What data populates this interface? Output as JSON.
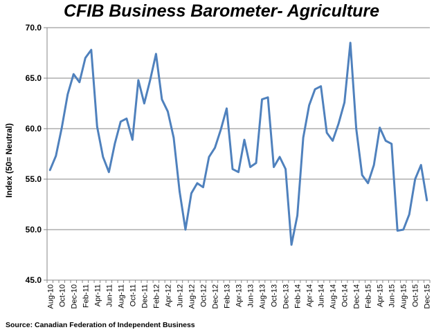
{
  "chart_data": {
    "type": "line",
    "title": "CFIB Business Barometer- Agriculture",
    "ylabel": "Index (50= Neutral)",
    "xlabel": "",
    "source": "Source: Canadian Federation of Independent Business",
    "ylim": [
      45.0,
      70.0
    ],
    "yticks": [
      "45.0",
      "50.0",
      "55.0",
      "60.0",
      "65.0",
      "70.0"
    ],
    "grid": "horizontal",
    "line_color": "#4f81bd",
    "x": [
      "Aug-10",
      "Sep-10",
      "Oct-10",
      "Nov-10",
      "Dec-10",
      "Jan-11",
      "Feb-11",
      "Mar-11",
      "Apr-11",
      "May-11",
      "Jun-11",
      "Jul-11",
      "Aug-11",
      "Sep-11",
      "Oct-11",
      "Nov-11",
      "Dec-11",
      "Jan-12",
      "Feb-12",
      "Mar-12",
      "Apr-12",
      "May-12",
      "Jun-12",
      "Jul-12",
      "Aug-12",
      "Sep-12",
      "Oct-12",
      "Nov-12",
      "Dec-12",
      "Jan-13",
      "Feb-13",
      "Mar-13",
      "Apr-13",
      "May-13",
      "Jun-13",
      "Jul-13",
      "Aug-13",
      "Sep-13",
      "Oct-13",
      "Nov-13",
      "Dec-13",
      "Jan-14",
      "Feb-14",
      "Mar-14",
      "Apr-14",
      "May-14",
      "Jun-14",
      "Jul-14",
      "Aug-14",
      "Sep-14",
      "Oct-14",
      "Nov-14",
      "Dec-14",
      "Jan-15",
      "Feb-15",
      "Mar-15",
      "Apr-15",
      "May-15",
      "Jun-15",
      "Jul-15",
      "Aug-15",
      "Sep-15",
      "Oct-15",
      "Nov-15",
      "Dec-15"
    ],
    "xtick_labels": [
      "Aug-10",
      "Oct-10",
      "Dec-10",
      "Feb-11",
      "Apr-11",
      "Jun-11",
      "Aug-11",
      "Oct-11",
      "Dec-11",
      "Feb-12",
      "Apr-12",
      "Jun-12",
      "Aug-12",
      "Oct-12",
      "Dec-12",
      "Feb-13",
      "Apr-13",
      "Jun-13",
      "Aug-13",
      "Oct-13",
      "Dec-13",
      "Feb-14",
      "Apr-14",
      "Jun-14",
      "Aug-14",
      "Oct-14",
      "Dec-14",
      "Feb-15",
      "Apr-15",
      "Jun-15",
      "Aug-15",
      "Oct-15",
      "Dec-15"
    ],
    "series": [
      {
        "values": [
          55.9,
          57.3,
          60.1,
          63.4,
          65.4,
          64.6,
          67.0,
          67.8,
          60.2,
          57.2,
          55.7,
          58.5,
          60.7,
          61.0,
          58.9,
          64.8,
          62.5,
          64.8,
          67.4,
          62.9,
          61.7,
          59.1,
          53.8,
          50.0,
          53.6,
          54.6,
          54.2,
          57.2,
          58.1,
          59.9,
          62.0,
          56.0,
          55.7,
          58.9,
          56.2,
          56.6,
          62.9,
          63.1,
          56.2,
          57.2,
          56.0,
          48.5,
          51.4,
          59.1,
          62.3,
          63.9,
          64.2,
          59.6,
          58.8,
          60.5,
          62.6,
          68.5,
          60.0,
          55.4,
          54.6,
          56.4,
          60.1,
          58.8,
          58.5,
          49.9,
          50.0,
          51.5,
          55.0,
          56.4,
          52.9
        ]
      }
    ]
  }
}
